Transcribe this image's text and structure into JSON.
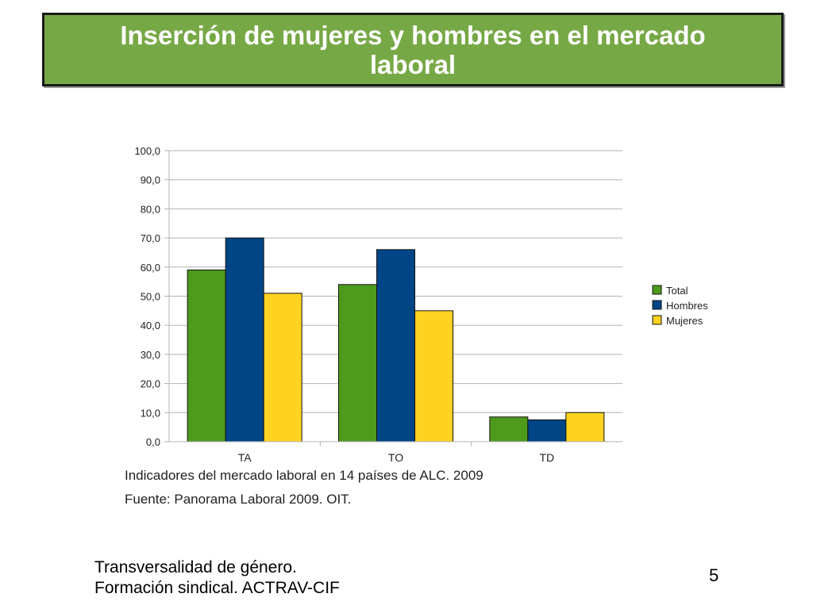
{
  "slide": {
    "title": "Inserción de mujeres y hombres en el mercado laboral",
    "footer_line1": "Transversalidad de género.",
    "footer_line2": "Formación sindical. ACTRAV-CIF",
    "page_number": "5"
  },
  "chart_data": {
    "type": "bar",
    "categories": [
      "TA",
      "TO",
      "TD"
    ],
    "series": [
      {
        "name": "Total",
        "values": [
          59.0,
          54.0,
          8.5
        ],
        "color": "#4e9a1c"
      },
      {
        "name": "Hombres",
        "values": [
          70.0,
          66.0,
          7.5
        ],
        "color": "#004586"
      },
      {
        "name": "Mujeres",
        "values": [
          51.0,
          45.0,
          10.0
        ],
        "color": "#ffd320"
      }
    ],
    "ylim": [
      0,
      100
    ],
    "yticks": [
      "0,0",
      "10,0",
      "20,0",
      "30,0",
      "40,0",
      "50,0",
      "60,0",
      "70,0",
      "80,0",
      "90,0",
      "100,0"
    ],
    "grid": true,
    "legend_position": "right",
    "caption_line1": "Indicadores del mercado laboral en 14 países de ALC. 2009",
    "caption_line2": "Fuente: Panorama Laboral 2009. OIT."
  }
}
